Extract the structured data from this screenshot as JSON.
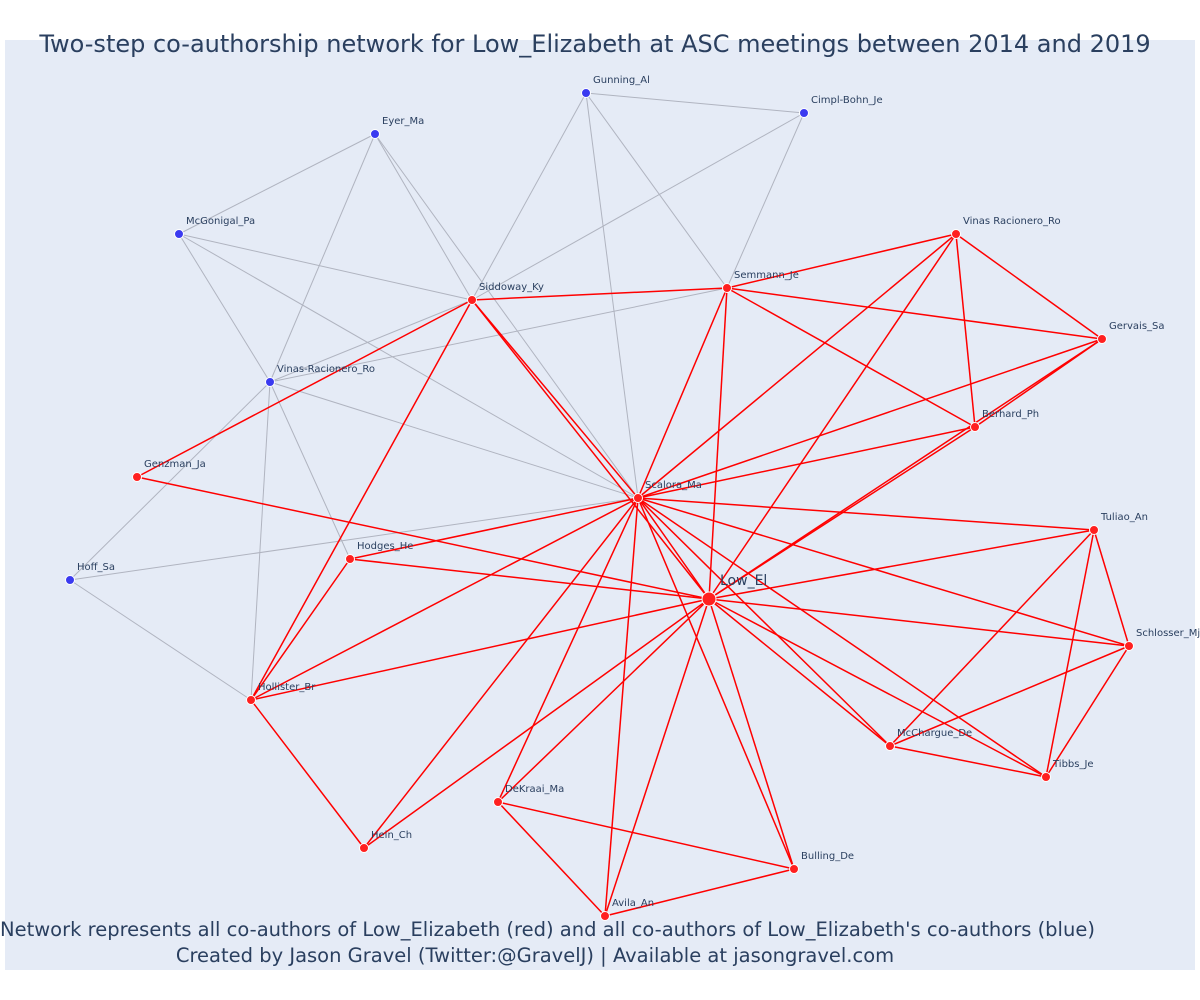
{
  "title": "Two-step co-authorship network for Low_Elizabeth at ASC meetings between 2014 and 2019",
  "footer": {
    "line1": "Network represents all co-authors of Low_Elizabeth (red) and all co-authors of Low_Elizabeth's co-authors (blue)",
    "line2": "Created by Jason Gravel (Twitter:@GravelJ) | Available at jasongravel.com"
  },
  "colors": {
    "background": "#e5ebf6",
    "coauthor": "#ff2020",
    "second_step": "#3a3af0",
    "red_edge": "#ff0000",
    "grey_edge": "#b0b4c0",
    "text": "#2a3f5f"
  },
  "nodes": [
    {
      "id": "Low_El",
      "group": "focal"
    },
    {
      "id": "Scalora_Ma",
      "group": "coauthor"
    },
    {
      "id": "Siddoway_Ky",
      "group": "coauthor"
    },
    {
      "id": "Semmann_Je",
      "group": "coauthor"
    },
    {
      "id": "Vinas Racionero_Ro",
      "group": "coauthor"
    },
    {
      "id": "Gervais_Sa",
      "group": "coauthor"
    },
    {
      "id": "Berhard_Ph",
      "group": "coauthor"
    },
    {
      "id": "Tuliao_An",
      "group": "coauthor"
    },
    {
      "id": "Schlosser_Mj",
      "group": "coauthor"
    },
    {
      "id": "McChargue_De",
      "group": "coauthor"
    },
    {
      "id": "Tibbs_Je",
      "group": "coauthor"
    },
    {
      "id": "Bulling_De",
      "group": "coauthor"
    },
    {
      "id": "Avila_An",
      "group": "coauthor"
    },
    {
      "id": "DeKraai_Ma",
      "group": "coauthor"
    },
    {
      "id": "Hein_Ch",
      "group": "coauthor"
    },
    {
      "id": "Hollister_Br",
      "group": "coauthor"
    },
    {
      "id": "Hodges_He",
      "group": "coauthor"
    },
    {
      "id": "Genzman_Ja",
      "group": "coauthor"
    },
    {
      "id": "Gunning_Al",
      "group": "second"
    },
    {
      "id": "Cimpl-Bohn_Je",
      "group": "second"
    },
    {
      "id": "Eyer_Ma",
      "group": "second"
    },
    {
      "id": "McGonigal_Pa",
      "group": "second"
    },
    {
      "id": "Vinas-Racionero_Ro",
      "group": "second"
    },
    {
      "id": "Hoff_Sa",
      "group": "second"
    }
  ],
  "edges_red": [
    [
      "Low_El",
      "Scalora_Ma"
    ],
    [
      "Low_El",
      "Siddoway_Ky"
    ],
    [
      "Low_El",
      "Semmann_Je"
    ],
    [
      "Low_El",
      "Vinas Racionero_Ro"
    ],
    [
      "Low_El",
      "Gervais_Sa"
    ],
    [
      "Low_El",
      "Berhard_Ph"
    ],
    [
      "Low_El",
      "Tuliao_An"
    ],
    [
      "Low_El",
      "Schlosser_Mj"
    ],
    [
      "Low_El",
      "McChargue_De"
    ],
    [
      "Low_El",
      "Tibbs_Je"
    ],
    [
      "Low_El",
      "Bulling_De"
    ],
    [
      "Low_El",
      "Avila_An"
    ],
    [
      "Low_El",
      "DeKraai_Ma"
    ],
    [
      "Low_El",
      "Hein_Ch"
    ],
    [
      "Low_El",
      "Hollister_Br"
    ],
    [
      "Low_El",
      "Hodges_He"
    ],
    [
      "Low_El",
      "Genzman_Ja"
    ],
    [
      "Scalora_Ma",
      "Siddoway_Ky"
    ],
    [
      "Scalora_Ma",
      "Semmann_Je"
    ],
    [
      "Scalora_Ma",
      "Vinas Racionero_Ro"
    ],
    [
      "Scalora_Ma",
      "Gervais_Sa"
    ],
    [
      "Scalora_Ma",
      "Berhard_Ph"
    ],
    [
      "Scalora_Ma",
      "Tuliao_An"
    ],
    [
      "Scalora_Ma",
      "Schlosser_Mj"
    ],
    [
      "Scalora_Ma",
      "McChargue_De"
    ],
    [
      "Scalora_Ma",
      "Tibbs_Je"
    ],
    [
      "Scalora_Ma",
      "Bulling_De"
    ],
    [
      "Scalora_Ma",
      "Avila_An"
    ],
    [
      "Scalora_Ma",
      "DeKraai_Ma"
    ],
    [
      "Scalora_Ma",
      "Hein_Ch"
    ],
    [
      "Scalora_Ma",
      "Hollister_Br"
    ],
    [
      "Scalora_Ma",
      "Hodges_He"
    ],
    [
      "Siddoway_Ky",
      "Semmann_Je"
    ],
    [
      "Siddoway_Ky",
      "Genzman_Ja"
    ],
    [
      "Siddoway_Ky",
      "Hollister_Br"
    ],
    [
      "Semmann_Je",
      "Vinas Racionero_Ro"
    ],
    [
      "Semmann_Je",
      "Gervais_Sa"
    ],
    [
      "Semmann_Je",
      "Berhard_Ph"
    ],
    [
      "Vinas Racionero_Ro",
      "Gervais_Sa"
    ],
    [
      "Vinas Racionero_Ro",
      "Berhard_Ph"
    ],
    [
      "Gervais_Sa",
      "Berhard_Ph"
    ],
    [
      "Tuliao_An",
      "Schlosser_Mj"
    ],
    [
      "Tuliao_An",
      "McChargue_De"
    ],
    [
      "Tuliao_An",
      "Tibbs_Je"
    ],
    [
      "Schlosser_Mj",
      "McChargue_De"
    ],
    [
      "Schlosser_Mj",
      "Tibbs_Je"
    ],
    [
      "McChargue_De",
      "Tibbs_Je"
    ],
    [
      "DeKraai_Ma",
      "Avila_An"
    ],
    [
      "DeKraai_Ma",
      "Bulling_De"
    ],
    [
      "Avila_An",
      "Bulling_De"
    ],
    [
      "Hodges_He",
      "Hollister_Br"
    ],
    [
      "Hollister_Br",
      "Hein_Ch"
    ]
  ],
  "edges_grey": [
    [
      "Gunning_Al",
      "Cimpl-Bohn_Je"
    ],
    [
      "Gunning_Al",
      "Siddoway_Ky"
    ],
    [
      "Gunning_Al",
      "Semmann_Je"
    ],
    [
      "Gunning_Al",
      "Scalora_Ma"
    ],
    [
      "Cimpl-Bohn_Je",
      "Semmann_Je"
    ],
    [
      "Cimpl-Bohn_Je",
      "Siddoway_Ky"
    ],
    [
      "Eyer_Ma",
      "McGonigal_Pa"
    ],
    [
      "Eyer_Ma",
      "Siddoway_Ky"
    ],
    [
      "Eyer_Ma",
      "Vinas-Racionero_Ro"
    ],
    [
      "Eyer_Ma",
      "Scalora_Ma"
    ],
    [
      "McGonigal_Pa",
      "Siddoway_Ky"
    ],
    [
      "McGonigal_Pa",
      "Vinas-Racionero_Ro"
    ],
    [
      "McGonigal_Pa",
      "Scalora_Ma"
    ],
    [
      "Vinas-Racionero_Ro",
      "Siddoway_Ky"
    ],
    [
      "Vinas-Racionero_Ro",
      "Semmann_Je"
    ],
    [
      "Vinas-Racionero_Ro",
      "Scalora_Ma"
    ],
    [
      "Vinas-Racionero_Ro",
      "Hodges_He"
    ],
    [
      "Vinas-Racionero_Ro",
      "Hollister_Br"
    ],
    [
      "Vinas-Racionero_Ro",
      "Hoff_Sa"
    ],
    [
      "Hoff_Sa",
      "Scalora_Ma"
    ],
    [
      "Hoff_Sa",
      "Hollister_Br"
    ]
  ]
}
